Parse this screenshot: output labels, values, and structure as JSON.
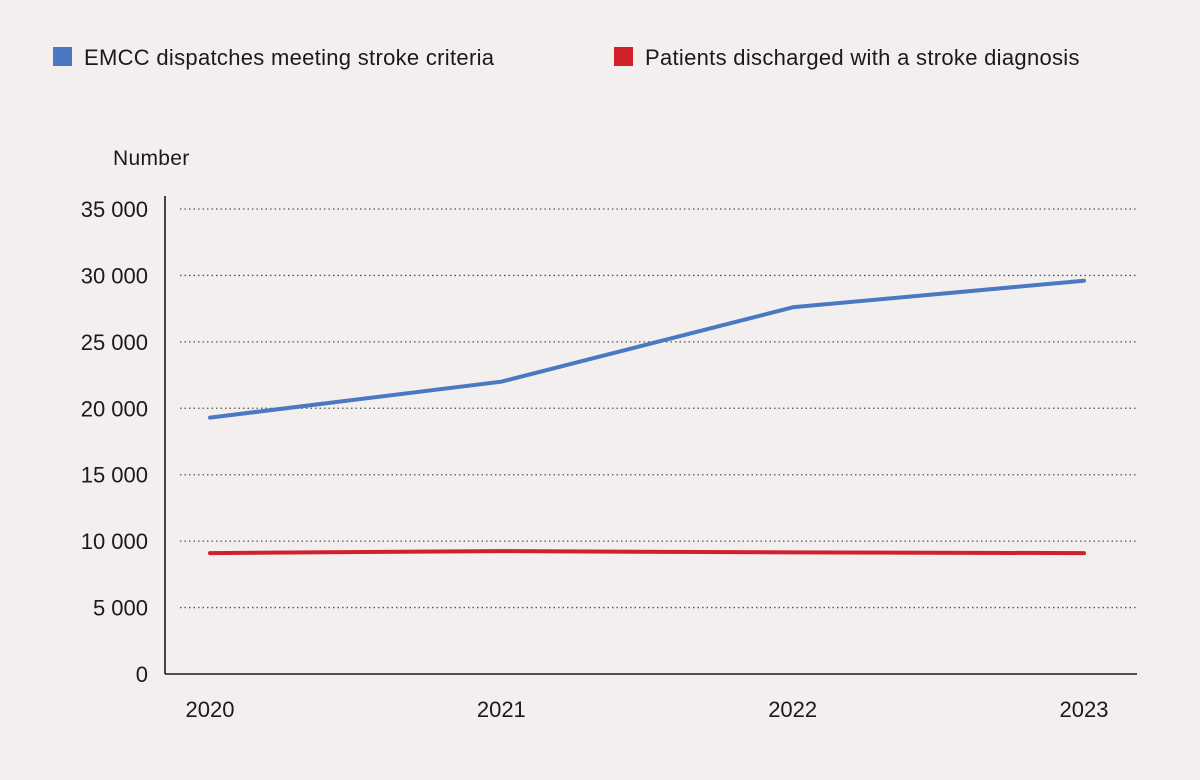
{
  "chart_data": {
    "type": "line",
    "ylabel": "Number",
    "xlabel": "",
    "categories": [
      "2020",
      "2021",
      "2022",
      "2023"
    ],
    "ylim": [
      0,
      35000
    ],
    "yticks": [
      0,
      5000,
      10000,
      15000,
      20000,
      25000,
      30000,
      35000
    ],
    "ytick_labels": [
      "0",
      "5 000",
      "10 000",
      "15 000",
      "20 000",
      "25 000",
      "30 000",
      "35 000"
    ],
    "grid": true,
    "grid_style": "dotted horizontal",
    "legend_position": "top",
    "series": [
      {
        "name": "EMCC dispatches meeting stroke criteria",
        "color": "#4a78c2",
        "values": [
          19300,
          22000,
          27600,
          29600
        ]
      },
      {
        "name": "Patients discharged with a stroke diagnosis",
        "color": "#d2202a",
        "values": [
          9100,
          9250,
          9150,
          9100
        ]
      }
    ]
  }
}
